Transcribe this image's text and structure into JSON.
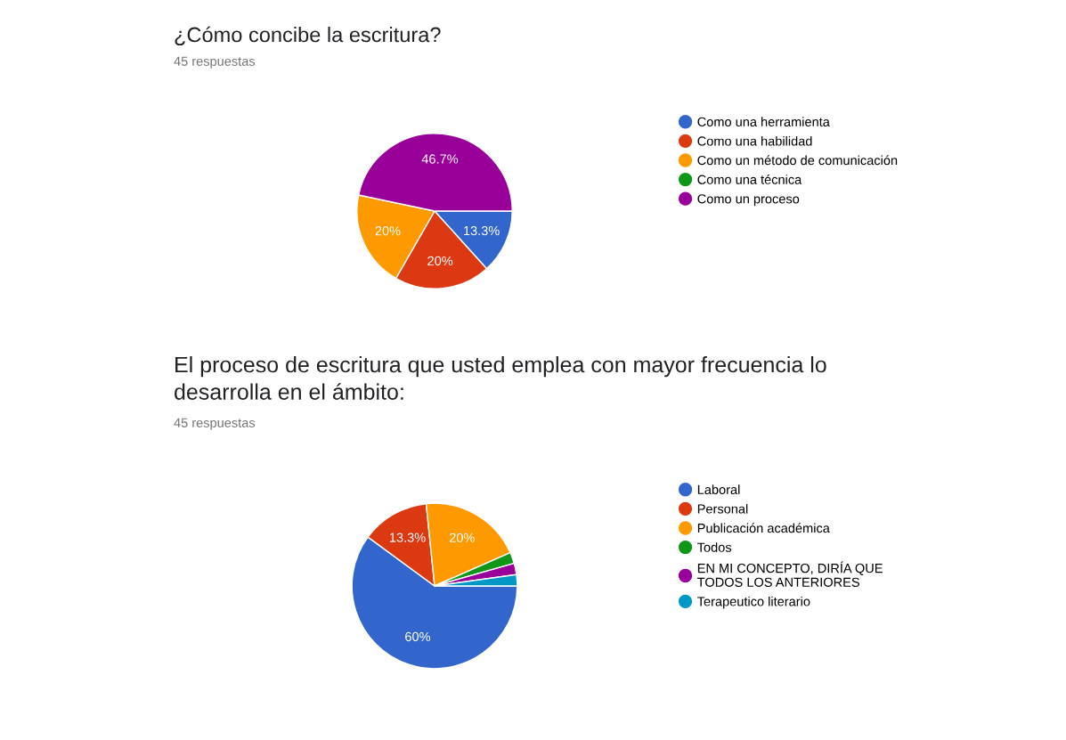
{
  "chart_data": [
    {
      "type": "pie",
      "title": "¿Cómo concibe la escritura?",
      "subtitle": "45 respuestas",
      "categories": [
        "Como una herramienta",
        "Como una habilidad",
        "Como un método de comunicación",
        "Como una técnica",
        "Como un proceso"
      ],
      "values": [
        13.3,
        20,
        20,
        0,
        46.7
      ],
      "colors": [
        "#3366cc",
        "#dc3912",
        "#ff9900",
        "#109618",
        "#990099"
      ],
      "value_labels": [
        "13.3%",
        "20%",
        "20%",
        null,
        "46.7%"
      ],
      "legend": "right"
    },
    {
      "type": "pie",
      "title": "El proceso de escritura que usted emplea con mayor frecuencia lo desarrolla en el ámbito:",
      "subtitle": "45 respuestas",
      "categories": [
        "Laboral",
        "Personal",
        "Publicación académica",
        "Todos",
        "EN MI CONCEPTO, DIRÍA QUE\nTODOS LOS ANTERIORES",
        "Terapeutico literario"
      ],
      "values": [
        60,
        13.3,
        20,
        2.2,
        2.2,
        2.2
      ],
      "colors": [
        "#3366cc",
        "#dc3912",
        "#ff9900",
        "#109618",
        "#990099",
        "#0099c6"
      ],
      "value_labels": [
        "60%",
        "13.3%",
        "20%",
        null,
        null,
        null
      ],
      "legend": "right"
    }
  ]
}
